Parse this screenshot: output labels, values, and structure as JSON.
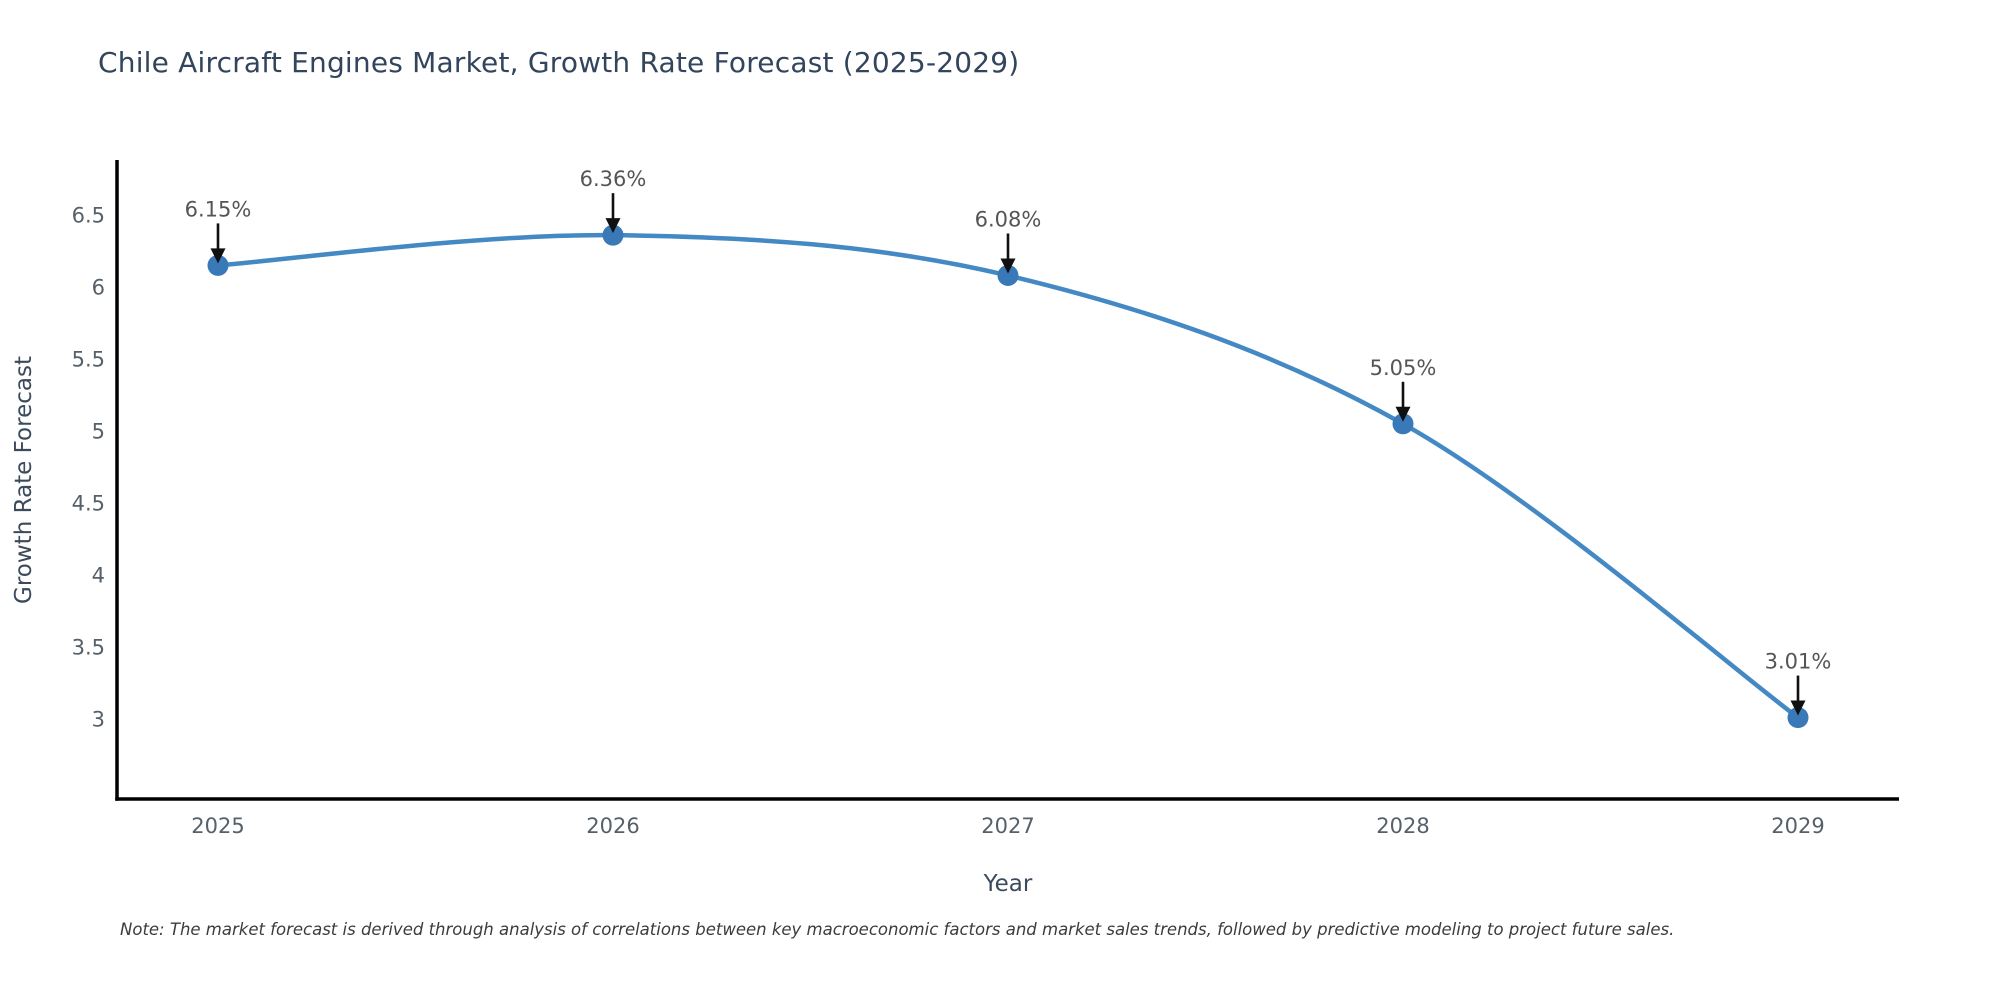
{
  "chart_data": {
    "type": "line",
    "title": "Chile Aircraft Engines Market, Growth Rate Forecast (2025-2029)",
    "xlabel": "Year",
    "ylabel": "Growth Rate Forecast",
    "x": [
      2025,
      2026,
      2027,
      2028,
      2029
    ],
    "series": [
      {
        "name": "Growth Rate Forecast",
        "values": [
          6.15,
          6.36,
          6.08,
          5.05,
          3.01
        ]
      }
    ],
    "point_labels": [
      "6.15%",
      "6.36%",
      "6.08%",
      "5.05%",
      "3.01%"
    ],
    "xticks": [
      "2025",
      "2026",
      "2027",
      "2028",
      "2029"
    ],
    "yticks": [
      6.5,
      6,
      5.5,
      5,
      4.5,
      4,
      3.5,
      3
    ],
    "xlim": [
      2024.74,
      2029.26
    ],
    "ylim": [
      2.44,
      6.88
    ],
    "grid": false,
    "line_shape": "spline",
    "legend": "none",
    "colors": {
      "line": "#4488c4",
      "marker": "#3a79b7",
      "axis": "#000000",
      "title": "#32455c",
      "axis_title": "#3b4a5c",
      "tick_label": "#566069",
      "annotation_text": "#555555",
      "arrow": "#101010",
      "background": "#ffffff"
    }
  },
  "note": {
    "text": "Note: The market forecast is derived through analysis of correlations between key macroeconomic factors and market sales trends, followed by predictive modeling to project future sales."
  }
}
